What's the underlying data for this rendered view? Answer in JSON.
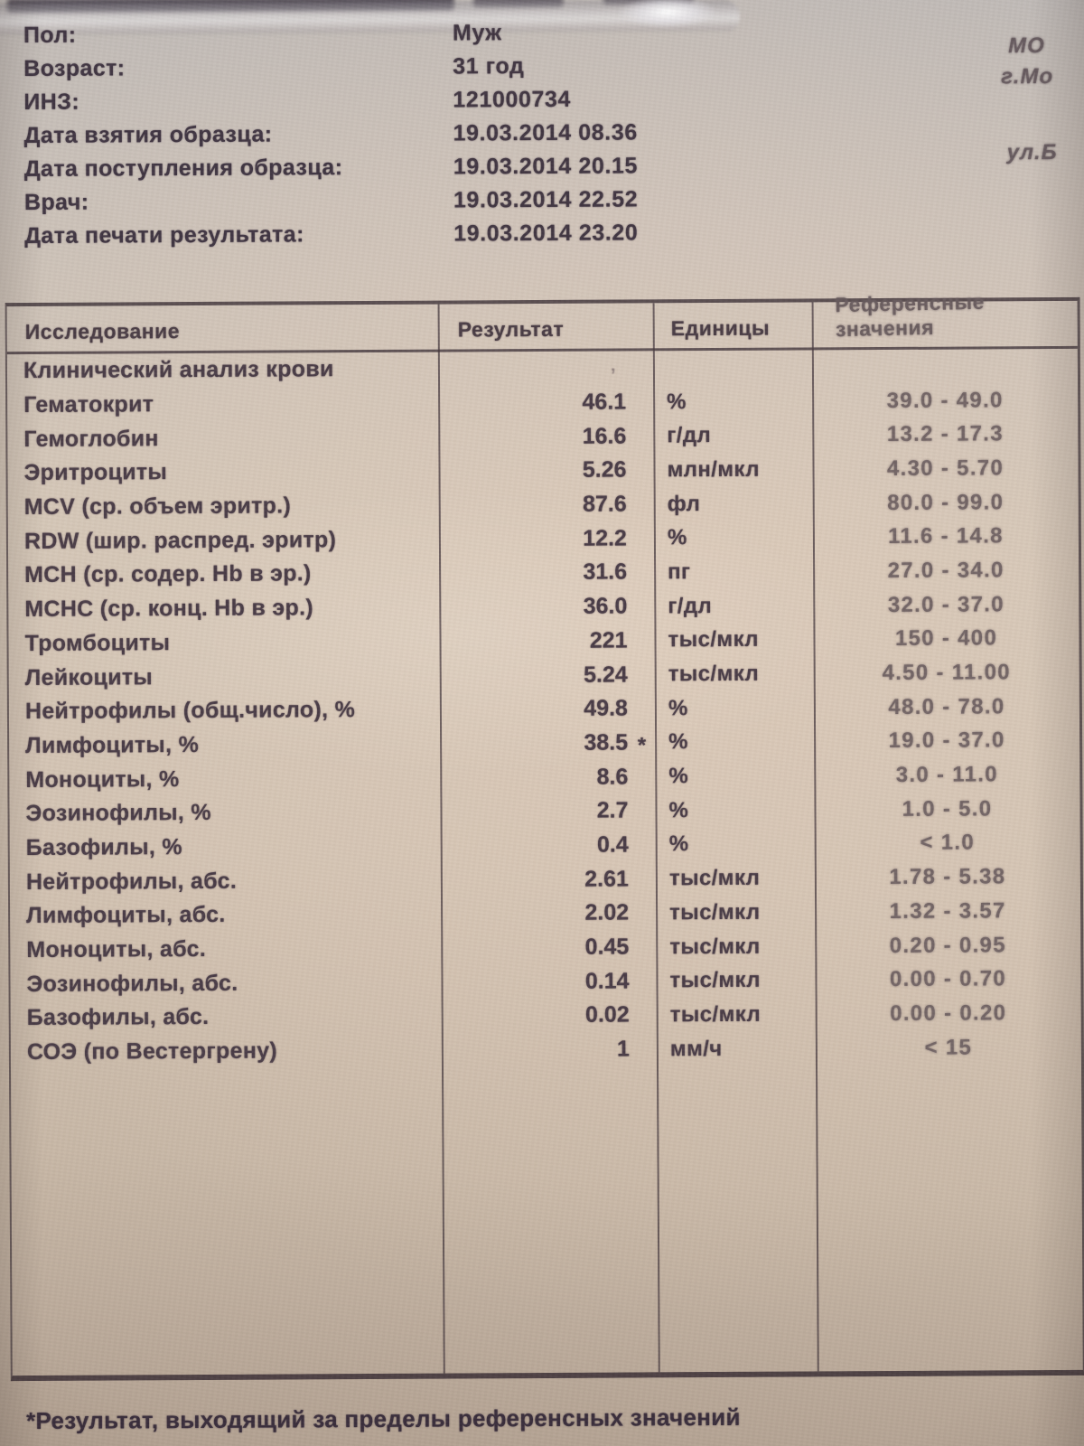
{
  "patient": {
    "fields": [
      {
        "label": "Пол:",
        "value": "Муж"
      },
      {
        "label": "Возраст:",
        "value": "31 год"
      },
      {
        "label": "ИНЗ:",
        "value": "121000734"
      },
      {
        "label": "Дата взятия образца:",
        "value": "19.03.2014 08.36"
      },
      {
        "label": "Дата поступления образца:",
        "value": "19.03.2014 20.15"
      },
      {
        "label": "Врач:",
        "value": "19.03.2014 22.52"
      },
      {
        "label": "Дата печати результата:",
        "value": "19.03.2014 23.20"
      }
    ],
    "clinic_fragments": [
      "МО",
      "г.Мо",
      "ул.Б"
    ]
  },
  "table": {
    "columns": [
      "Исследование",
      "Результат",
      "Единицы",
      "Референсные значения"
    ],
    "section": {
      "name": "Клинический анализ крови",
      "mark": "’"
    },
    "rows": [
      {
        "name": "Гематокрит",
        "result": "46.1",
        "unit": "%",
        "ref": "39.0 - 49.0"
      },
      {
        "name": "Гемоглобин",
        "result": "16.6",
        "unit": "г/дл",
        "ref": "13.2 - 17.3"
      },
      {
        "name": "Эритроциты",
        "result": "5.26",
        "unit": "млн/мкл",
        "ref": "4.30 - 5.70"
      },
      {
        "name": "MCV (ср. объем эритр.)",
        "result": "87.6",
        "unit": "фл",
        "ref": "80.0 - 99.0"
      },
      {
        "name": "RDW (шир. распред. эритр)",
        "result": "12.2",
        "unit": "%",
        "ref": "11.6 - 14.8"
      },
      {
        "name": "MCH (ср. содер. Hb в эр.)",
        "result": "31.6",
        "unit": "пг",
        "ref": "27.0 - 34.0"
      },
      {
        "name": "MCHC (ср. конц. Hb в эр.)",
        "result": "36.0",
        "unit": "г/дл",
        "ref": "32.0 - 37.0"
      },
      {
        "name": "Тромбоциты",
        "result": "221",
        "unit": "тыс/мкл",
        "ref": "150 - 400"
      },
      {
        "name": "Лейкоциты",
        "result": "5.24",
        "unit": "тыс/мкл",
        "ref": "4.50 - 11.00"
      },
      {
        "name": "Нейтрофилы (общ.число), %",
        "result": "49.8",
        "unit": "%",
        "ref": "48.0 - 78.0"
      },
      {
        "name": "Лимфоциты, %",
        "result": "38.5",
        "flag": "*",
        "unit": "%",
        "ref": "19.0 - 37.0"
      },
      {
        "name": "Моноциты, %",
        "result": "8.6",
        "unit": "%",
        "ref": "3.0 - 11.0"
      },
      {
        "name": "Эозинофилы, %",
        "result": "2.7",
        "unit": "%",
        "ref": "1.0 - 5.0"
      },
      {
        "name": "Базофилы, %",
        "result": "0.4",
        "unit": "%",
        "ref": "< 1.0"
      },
      {
        "name": "Нейтрофилы, абс.",
        "result": "2.61",
        "unit": "тыс/мкл",
        "ref": "1.78 - 5.38"
      },
      {
        "name": "Лимфоциты, абс.",
        "result": "2.02",
        "unit": "тыс/мкл",
        "ref": "1.32 - 3.57"
      },
      {
        "name": "Моноциты, абс.",
        "result": "0.45",
        "unit": "тыс/мкл",
        "ref": "0.20 - 0.95"
      },
      {
        "name": "Эозинофилы, абс.",
        "result": "0.14",
        "unit": "тыс/мкл",
        "ref": "0.00 - 0.70"
      },
      {
        "name": "Базофилы, абс.",
        "result": "0.02",
        "unit": "тыс/мкл",
        "ref": "0.00 - 0.20"
      },
      {
        "name": "СОЭ (по Вестергрену)",
        "result": "1",
        "unit": "мм/ч",
        "ref": "< 15"
      }
    ]
  },
  "footnote": "*Результат, выходящий за пределы референсных значений"
}
